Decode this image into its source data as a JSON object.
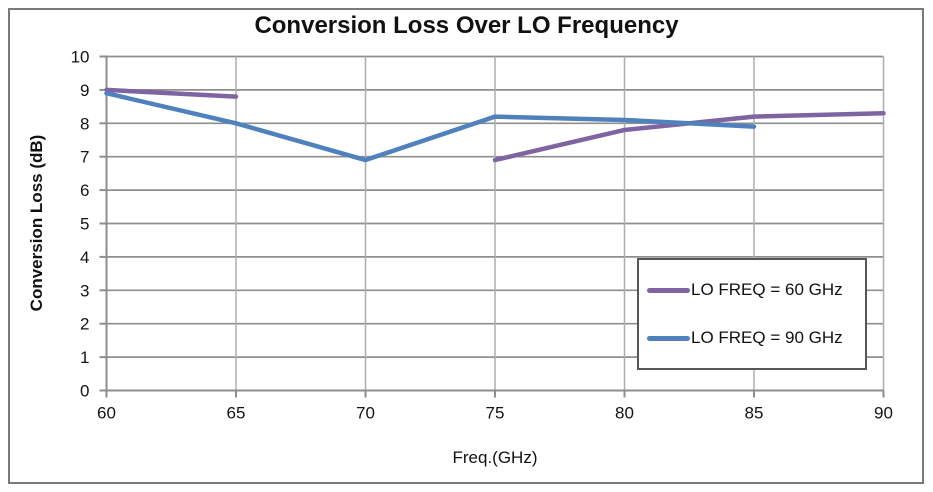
{
  "chart_title": "Conversion Loss Over LO Frequency",
  "chart_data": {
    "type": "line",
    "title": "Conversion Loss Over LO Frequency",
    "xlabel": "Freq.(GHz)",
    "ylabel": "Conversion Loss (dB)",
    "xlim": [
      60,
      90
    ],
    "ylim": [
      0,
      10
    ],
    "x_ticks": [
      60,
      65,
      70,
      75,
      80,
      85,
      90
    ],
    "y_ticks": [
      0,
      1,
      2,
      3,
      4,
      5,
      6,
      7,
      8,
      9,
      10
    ],
    "grid": true,
    "legend_position": "inside-right-middle",
    "series": [
      {
        "name": "LO FREQ = 60 GHz",
        "color": "#8064A2",
        "segments": [
          [
            [
              60,
              9.0
            ],
            [
              65,
              8.8
            ]
          ],
          [
            [
              75,
              6.9
            ],
            [
              80,
              7.8
            ],
            [
              85,
              8.2
            ],
            [
              90,
              8.3
            ]
          ]
        ]
      },
      {
        "name": "LO FREQ = 90 GHz",
        "color": "#4F81BD",
        "segments": [
          [
            [
              60,
              8.9
            ],
            [
              65,
              8.0
            ],
            [
              70,
              6.9
            ],
            [
              75,
              8.2
            ],
            [
              80,
              8.1
            ],
            [
              85,
              7.9
            ]
          ]
        ]
      }
    ]
  },
  "colors": {
    "h_gridline": "#8E8E8E",
    "v_gridline": "#ADADAD",
    "axis_line": "#8E8E8E",
    "tick_text": "#141414",
    "legend_border": "#565656",
    "outer_border": "#7A7A7A"
  }
}
